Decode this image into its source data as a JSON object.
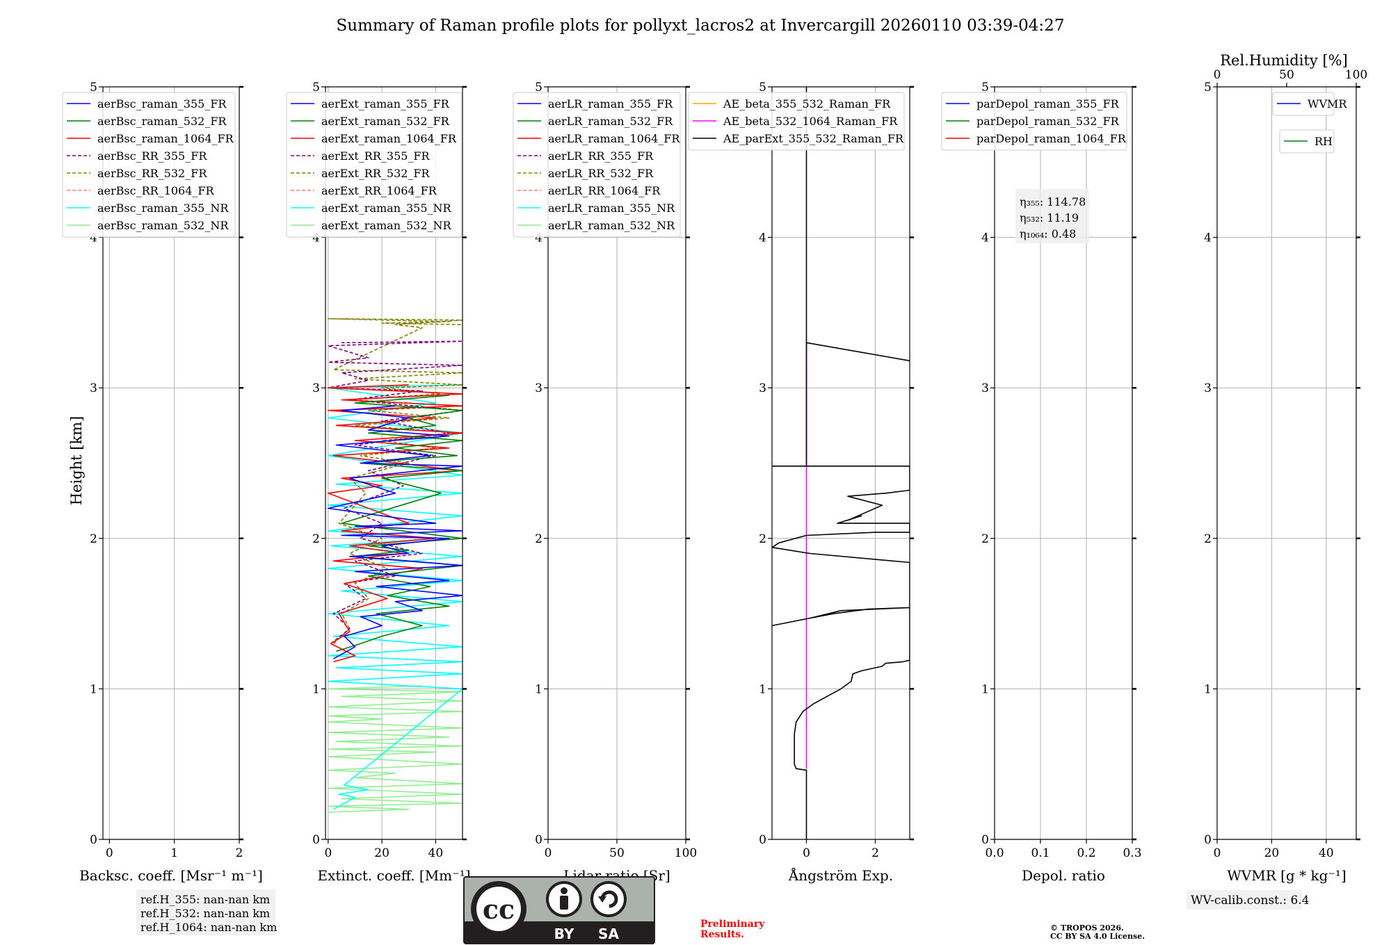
{
  "title": "Summary of Raman profile plots for pollyxt_lacros2 at Invercargill 20260110 03:39-04:27",
  "height_label": "Height [km]",
  "height_ticks": [
    0,
    1,
    2,
    3,
    4,
    5
  ],
  "colors": {
    "blue": "#0000ff",
    "green": "#008000",
    "red": "#ff0000",
    "purple": "#800080",
    "olive": "#808000",
    "salmon": "#fa8072",
    "cyan": "#00ffff",
    "lightgreen": "#90ee90",
    "orange": "#ffa500",
    "magenta": "#ff00ff",
    "black": "#000000",
    "grid": "#b0b0b0",
    "cc_grey": "#aab2ab",
    "cc_dark": "#231f20",
    "preliminary": "#ff0000"
  },
  "chart_data": [
    {
      "id": "bsc",
      "type": "line",
      "xlabel": "Backsc. coeff. [Msr⁻¹ m⁻¹]",
      "xlim": [
        -0.1,
        2.0
      ],
      "xticks": [
        "0",
        "1",
        "2"
      ],
      "xtick_values": [
        0,
        1,
        2
      ],
      "ylim": [
        0,
        5
      ],
      "legend": [
        {
          "label": "aerBsc_raman_355_FR",
          "color": "blue",
          "dash": false
        },
        {
          "label": "aerBsc_raman_532_FR",
          "color": "green",
          "dash": false
        },
        {
          "label": "aerBsc_raman_1064_FR",
          "color": "red",
          "dash": false
        },
        {
          "label": "aerBsc_RR_355_FR",
          "color": "purple",
          "dash": true
        },
        {
          "label": "aerBsc_RR_532_FR",
          "color": "olive",
          "dash": true
        },
        {
          "label": "aerBsc_RR_1064_FR",
          "color": "salmon",
          "dash": true
        },
        {
          "label": "aerBsc_raman_355_NR",
          "color": "cyan",
          "dash": false
        },
        {
          "label": "aerBsc_raman_532_NR",
          "color": "lightgreen",
          "dash": false
        }
      ],
      "series": []
    },
    {
      "id": "ext",
      "type": "line",
      "xlabel": "Extinct. coeff. [Mm⁻¹]",
      "xlim": [
        -1,
        50
      ],
      "xticks": [
        "0",
        "20",
        "40"
      ],
      "xtick_values": [
        0,
        20,
        40
      ],
      "ylim": [
        0,
        5
      ],
      "legend": [
        {
          "label": "aerExt_raman_355_FR",
          "color": "blue",
          "dash": false
        },
        {
          "label": "aerExt_raman_532_FR",
          "color": "green",
          "dash": false
        },
        {
          "label": "aerExt_raman_1064_FR",
          "color": "red",
          "dash": false
        },
        {
          "label": "aerExt_RR_355_FR",
          "color": "purple",
          "dash": true
        },
        {
          "label": "aerExt_RR_532_FR",
          "color": "olive",
          "dash": true
        },
        {
          "label": "aerExt_RR_1064_FR",
          "color": "salmon",
          "dash": true
        },
        {
          "label": "aerExt_raman_355_NR",
          "color": "cyan",
          "dash": false
        },
        {
          "label": "aerExt_raman_532_NR",
          "color": "lightgreen",
          "dash": false
        }
      ],
      "series": [
        {
          "name": "aerExt_raman_532_NR",
          "color": "lightgreen",
          "dash": false,
          "x": [
            0,
            30,
            0,
            50,
            5,
            50,
            0,
            50,
            10,
            25,
            0,
            50,
            0,
            40,
            0,
            50,
            3,
            45,
            0,
            50,
            0,
            20,
            0,
            50,
            0,
            50,
            5,
            50,
            0,
            35
          ],
          "y": [
            0.18,
            0.2,
            0.22,
            0.24,
            0.27,
            0.3,
            0.34,
            0.37,
            0.41,
            0.44,
            0.46,
            0.5,
            0.55,
            0.58,
            0.6,
            0.62,
            0.65,
            0.68,
            0.71,
            0.74,
            0.78,
            0.8,
            0.82,
            0.85,
            0.88,
            0.92,
            0.95,
            0.98,
            1.0,
            1.02
          ]
        },
        {
          "name": "aerExt_raman_355_NR",
          "color": "cyan",
          "dash": false,
          "x": [
            2,
            10,
            4,
            15,
            6,
            50,
            0,
            50,
            3,
            50,
            0,
            50,
            2,
            45,
            0,
            50,
            5,
            50,
            0,
            50,
            1,
            40,
            0,
            50,
            0,
            50,
            3,
            50,
            0,
            50,
            0,
            40,
            0,
            50
          ],
          "y": [
            0.2,
            0.28,
            0.3,
            0.33,
            0.36,
            1.0,
            1.05,
            1.1,
            1.14,
            1.18,
            1.22,
            1.28,
            1.35,
            1.42,
            1.5,
            1.58,
            1.65,
            1.72,
            1.8,
            1.88,
            1.95,
            2.0,
            2.05,
            2.15,
            2.22,
            2.3,
            2.36,
            2.42,
            2.55,
            2.7,
            2.8,
            2.9,
            3.0,
            3.02
          ]
        },
        {
          "name": "aerExt_RR_532_FR",
          "color": "olive",
          "dash": true,
          "x": [
            2,
            8,
            5,
            15,
            10,
            22,
            8,
            20,
            4,
            14,
            8,
            30,
            12,
            40,
            20,
            50,
            10,
            45,
            15,
            50,
            8,
            42,
            20,
            50,
            10,
            50,
            2,
            35,
            25,
            50,
            0,
            45,
            20,
            50
          ],
          "y": [
            1.3,
            1.4,
            1.5,
            1.6,
            1.7,
            1.8,
            1.9,
            2.0,
            2.1,
            2.3,
            2.4,
            2.5,
            2.55,
            2.6,
            2.65,
            2.7,
            2.75,
            2.8,
            2.85,
            2.88,
            2.92,
            2.96,
            3.0,
            3.02,
            3.06,
            3.1,
            3.12,
            3.4,
            3.42,
            3.45,
            3.46,
            3.44,
            3.43,
            3.42
          ]
        },
        {
          "name": "aerExt_RR_355_FR",
          "color": "purple",
          "dash": true,
          "x": [
            1,
            8,
            2,
            14,
            6,
            25,
            10,
            35,
            12,
            20,
            6,
            28,
            15,
            40,
            10,
            45,
            20,
            50,
            8,
            35,
            0,
            15,
            5,
            50,
            0,
            15,
            0,
            50,
            5
          ],
          "y": [
            1.3,
            1.4,
            1.5,
            1.6,
            1.7,
            1.75,
            1.85,
            1.9,
            2.0,
            2.1,
            2.2,
            2.35,
            2.45,
            2.55,
            2.62,
            2.7,
            2.78,
            2.85,
            2.92,
            2.98,
            3.0,
            3.05,
            3.1,
            3.15,
            3.17,
            3.2,
            3.28,
            3.31,
            3.3
          ]
        },
        {
          "name": "aerExt_raman_1064_FR",
          "color": "red",
          "dash": false,
          "x": [
            2,
            10,
            1,
            8,
            4,
            22,
            6,
            35,
            2,
            28,
            8,
            40,
            5,
            30,
            0,
            20,
            5,
            50,
            2,
            45,
            10,
            50,
            3,
            40,
            0,
            50,
            5,
            50,
            0,
            30
          ],
          "y": [
            1.18,
            1.22,
            1.3,
            1.38,
            1.5,
            1.6,
            1.7,
            1.8,
            1.85,
            1.9,
            1.95,
            2.0,
            2.05,
            2.1,
            2.3,
            2.35,
            2.4,
            2.45,
            2.55,
            2.6,
            2.65,
            2.7,
            2.75,
            2.8,
            2.85,
            2.88,
            2.92,
            2.96,
            3.0,
            3.02
          ]
        },
        {
          "name": "aerExt_raman_532_FR",
          "color": "green",
          "dash": false,
          "x": [
            3,
            12,
            20,
            35,
            18,
            45,
            22,
            38,
            15,
            50,
            10,
            30,
            15,
            50,
            5,
            42,
            20,
            50,
            12,
            48,
            25,
            50,
            15,
            40,
            30,
            50,
            10,
            45
          ],
          "y": [
            1.25,
            1.3,
            1.35,
            1.42,
            1.5,
            1.55,
            1.62,
            1.68,
            1.75,
            1.82,
            1.88,
            1.92,
            1.95,
            2.0,
            2.1,
            2.3,
            2.4,
            2.45,
            2.5,
            2.55,
            2.6,
            2.65,
            2.7,
            2.75,
            2.8,
            2.85,
            2.9,
            2.95
          ]
        },
        {
          "name": "aerExt_raman_355_FR",
          "color": "blue",
          "dash": false,
          "x": [
            2,
            10,
            6,
            20,
            12,
            35,
            25,
            50,
            18,
            45,
            10,
            50,
            8,
            30,
            20,
            45,
            5,
            50,
            10,
            40,
            0,
            25,
            8,
            50,
            12,
            38,
            3,
            45,
            15,
            30,
            5,
            25
          ],
          "y": [
            1.2,
            1.28,
            1.35,
            1.42,
            1.48,
            1.52,
            1.58,
            1.62,
            1.68,
            1.72,
            1.78,
            1.82,
            1.88,
            1.9,
            1.95,
            2.0,
            2.02,
            2.05,
            2.08,
            2.1,
            2.2,
            2.3,
            2.4,
            2.48,
            2.5,
            2.55,
            2.62,
            2.68,
            2.72,
            2.8,
            2.85,
            2.88
          ]
        }
      ]
    },
    {
      "id": "lr",
      "type": "line",
      "xlabel": "Lidar ratio [Sr]",
      "xlim": [
        0,
        100
      ],
      "xticks": [
        "0",
        "50",
        "100"
      ],
      "xtick_values": [
        0,
        50,
        100
      ],
      "ylim": [
        0,
        5
      ],
      "legend": [
        {
          "label": "aerLR_raman_355_FR",
          "color": "blue",
          "dash": false
        },
        {
          "label": "aerLR_raman_532_FR",
          "color": "green",
          "dash": false
        },
        {
          "label": "aerLR_raman_1064_FR",
          "color": "red",
          "dash": false
        },
        {
          "label": "aerLR_RR_355_FR",
          "color": "purple",
          "dash": true
        },
        {
          "label": "aerLR_RR_532_FR",
          "color": "olive",
          "dash": true
        },
        {
          "label": "aerLR_RR_1064_FR",
          "color": "salmon",
          "dash": true
        },
        {
          "label": "aerLR_raman_355_NR",
          "color": "cyan",
          "dash": false
        },
        {
          "label": "aerLR_raman_532_NR",
          "color": "lightgreen",
          "dash": false
        }
      ],
      "series": []
    },
    {
      "id": "ae",
      "type": "line",
      "xlabel": "Ångström Exp.",
      "xlim": [
        -1,
        3
      ],
      "xticks": [
        "0",
        "2"
      ],
      "xtick_values": [
        0,
        2
      ],
      "ylim": [
        0,
        5
      ],
      "legend": [
        {
          "label": "AE_beta_355_532_Raman_FR",
          "color": "orange",
          "dash": false
        },
        {
          "label": "AE_beta_532_1064_Raman_FR",
          "color": "magenta",
          "dash": false
        },
        {
          "label": "AE_parExt_355_532_Raman_FR",
          "color": "black",
          "dash": false
        }
      ],
      "series": [
        {
          "name": "AE_beta_532_1064_Raman_FR",
          "color": "magenta",
          "dash": false,
          "x": [
            0,
            0
          ],
          "y": [
            0.47,
            3.3
          ]
        },
        {
          "name": "AE_parExt_355_532_Raman_FR",
          "color": "black",
          "dash": false,
          "x": [
            0,
            0,
            -0.3,
            -0.35,
            -0.35,
            -0.3,
            -0.1,
            0.2,
            0.6,
            1.0,
            1.3,
            1.35,
            1.6,
            2.2,
            2.3,
            2.8,
            3.0,
            3.0,
            1.8,
            0.8,
            0.1,
            -1.0,
            -1.0,
            0.1,
            1.0,
            3.0,
            3.0,
            0.1,
            -1.0,
            -0.8,
            0.0,
            2.0,
            3.0,
            3.0,
            0.9,
            1.6,
            1.2,
            1.8,
            2.2,
            1.2,
            2.3,
            3.0,
            3.0,
            -1.0,
            -1.0,
            3.0,
            3.0,
            0.0,
            0.0,
            3.0,
            3.0,
            0.0,
            0.0
          ],
          "y": [
            0.0,
            0.46,
            0.47,
            0.5,
            0.7,
            0.78,
            0.85,
            0.9,
            0.95,
            1.0,
            1.05,
            1.1,
            1.12,
            1.15,
            1.17,
            1.18,
            1.19,
            1.54,
            1.53,
            1.5,
            1.47,
            1.42,
            1.42,
            1.47,
            1.52,
            1.54,
            1.84,
            1.9,
            1.94,
            1.97,
            2.02,
            2.04,
            2.04,
            2.1,
            2.1,
            2.15,
            2.12,
            2.18,
            2.22,
            2.28,
            2.3,
            2.32,
            2.48,
            2.48,
            2.48,
            2.48,
            2.48,
            2.48,
            3.3,
            3.18,
            3.18,
            3.3,
            5.0
          ]
        }
      ]
    },
    {
      "id": "depol",
      "type": "line",
      "xlabel": "Depol. ratio",
      "xlim": [
        0,
        0.3
      ],
      "xticks": [
        "0.0",
        "0.1",
        "0.2",
        "0.3"
      ],
      "xtick_values": [
        0,
        0.1,
        0.2,
        0.3
      ],
      "ylim": [
        0,
        5
      ],
      "legend": [
        {
          "label": "parDepol_raman_355_FR",
          "color": "blue",
          "dash": false
        },
        {
          "label": "parDepol_raman_532_FR",
          "color": "green",
          "dash": false
        },
        {
          "label": "parDepol_raman_1064_FR",
          "color": "red",
          "dash": false
        }
      ],
      "eta": [
        {
          "label": "η₃₅₅: 114.78"
        },
        {
          "label": "η₅₃₂: 11.19"
        },
        {
          "label": "η₁₀₆₄: 0.48"
        }
      ],
      "series": []
    },
    {
      "id": "wv",
      "type": "line",
      "xlabel": "WVMR [g * kg⁻¹]",
      "xlim": [
        0,
        51
      ],
      "xticks": [
        "0",
        "20",
        "40"
      ],
      "xtick_values": [
        0,
        20,
        40
      ],
      "top_xlabel": "Rel.Humidity [%]",
      "top_xlim": [
        0,
        100
      ],
      "top_xticks": [
        "0",
        "50",
        "100"
      ],
      "top_xtick_values": [
        0,
        50,
        100
      ],
      "ylim": [
        0,
        5
      ],
      "legend": [
        {
          "label": "WVMR",
          "color": "blue",
          "dash": false
        }
      ],
      "legend2": [
        {
          "label": "RH",
          "color": "green",
          "dash": false
        }
      ],
      "series": []
    }
  ],
  "info": {
    "ref_h": [
      "ref.H_355: nan-nan km",
      "ref.H_532: nan-nan km",
      "ref.H_1064: nan-nan km"
    ],
    "wv_calib": "WV-calib.const.: 6.4",
    "preliminary": [
      "Preliminary",
      "Results."
    ],
    "copyright": [
      "© TROPOS 2026.",
      "CC BY SA 4.0 License."
    ],
    "license_logo": {
      "cc": "cc",
      "by": "BY",
      "sa": "SA"
    }
  }
}
